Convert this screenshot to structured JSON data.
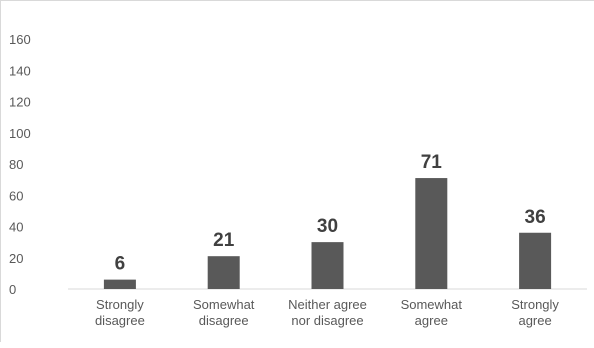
{
  "chart_data": {
    "type": "bar",
    "categories": [
      [
        "Strongly",
        "disagree"
      ],
      [
        "Somewhat",
        "disagree"
      ],
      [
        "Neither agree",
        "nor disagree"
      ],
      [
        "Somewhat",
        "agree"
      ],
      [
        "Strongly",
        "agree"
      ]
    ],
    "values": [
      6,
      21,
      30,
      71,
      36
    ],
    "data_labels": [
      "6",
      "21",
      "30",
      "71",
      "36"
    ],
    "y_ticks": [
      "0",
      "20",
      "40",
      "60",
      "80",
      "100",
      "120",
      "140",
      "160"
    ],
    "ylim": [
      0,
      160
    ],
    "title": "",
    "xlabel": "",
    "ylabel": "",
    "grid": false,
    "legend": "none",
    "bar_color": "#595959",
    "axis_color": "#d9d9d9"
  }
}
